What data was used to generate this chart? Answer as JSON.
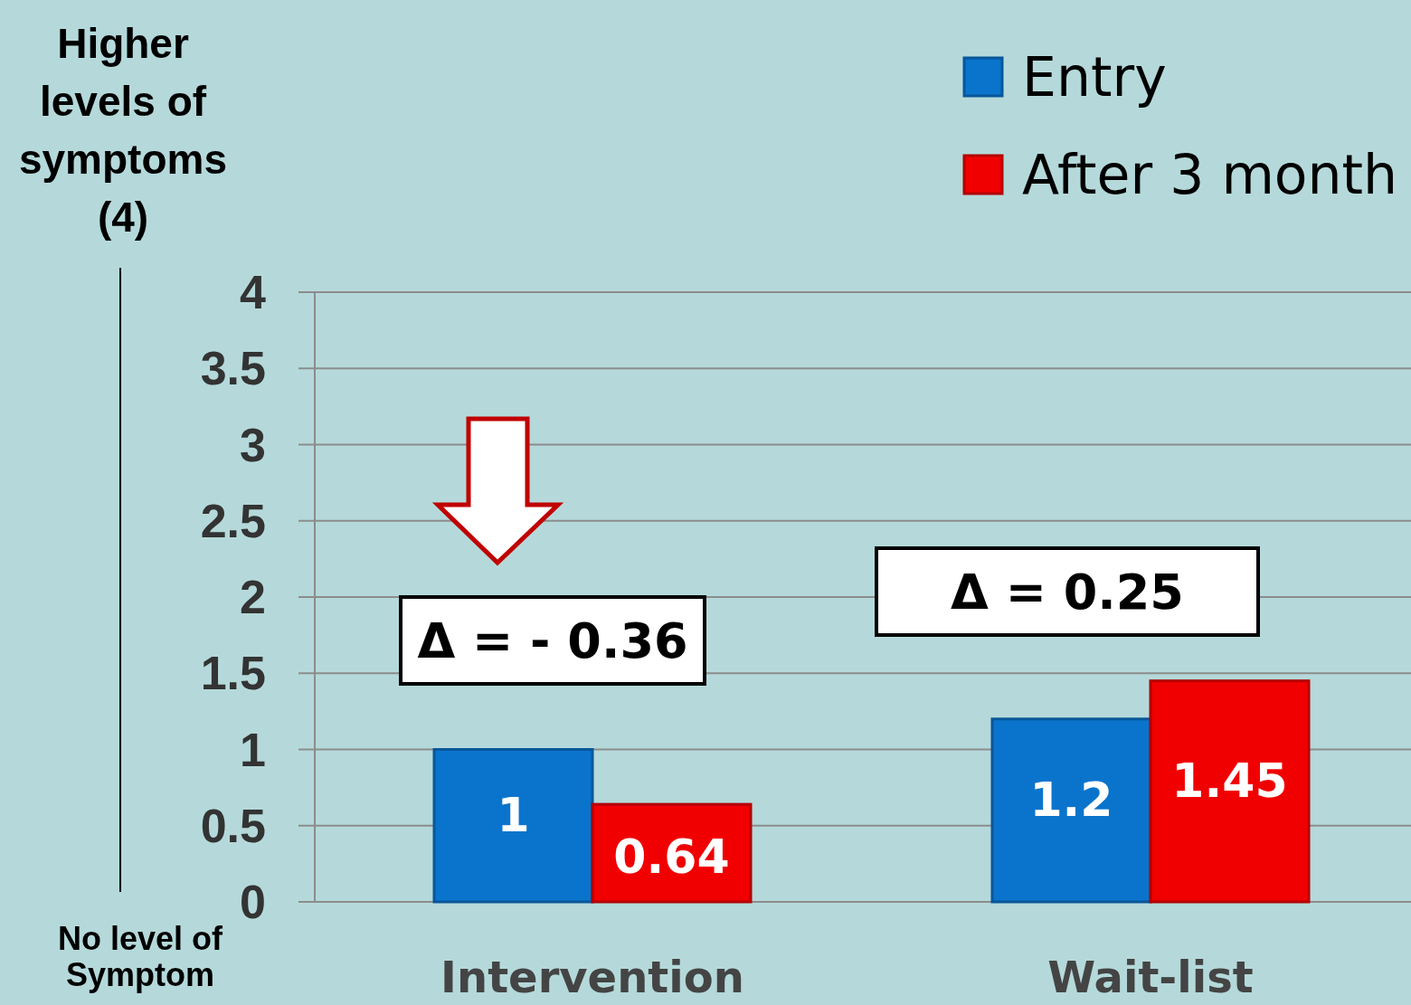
{
  "chart_data": {
    "type": "bar",
    "ylabel": "Higher levels of symptoms (4)",
    "categories": [
      "Intervention",
      "Wait-list"
    ],
    "series": [
      {
        "name": "Entry",
        "color": "#0a74cc",
        "values": [
          1,
          1.2
        ]
      },
      {
        "name": "After 3 month",
        "color": "#f00000",
        "values": [
          0.64,
          1.45
        ]
      }
    ],
    "ylim": [
      0,
      4
    ],
    "yticks": [
      0,
      0.5,
      1,
      1.5,
      2,
      2.5,
      3,
      3.5,
      4
    ],
    "grid": "y",
    "legend": "top right",
    "data_labels": true,
    "annotations": [
      "Δ = - 0.36",
      "Δ = 0.25",
      "No level of Symptom"
    ]
  }
}
